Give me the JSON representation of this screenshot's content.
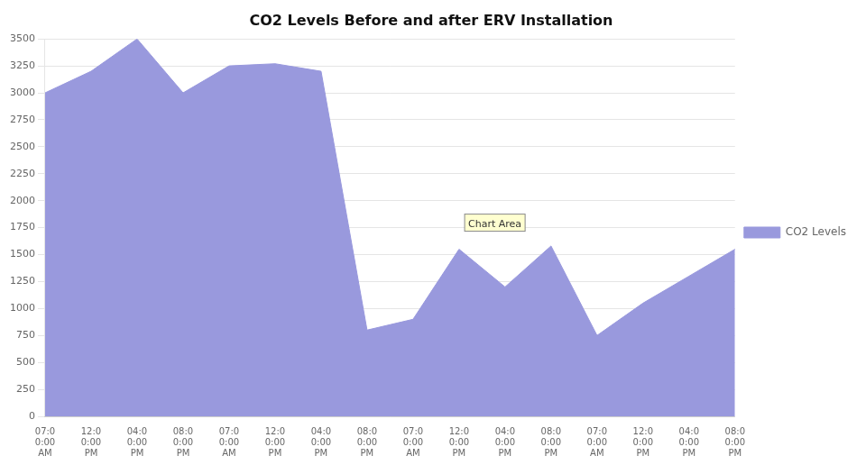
{
  "chart_data": {
    "type": "area",
    "title": "CO2 Levels Before and after ERV Installation",
    "categories": [
      "07:0\n0:00\nAM",
      "12:0\n0:00\nPM",
      "04:0\n0:00\nPM",
      "08:0\n0:00\nPM",
      "07:0\n0:00\nAM",
      "12:0\n0:00\nPM",
      "04:0\n0:00\nPM",
      "08:0\n0:00\nPM",
      "07:0\n0:00\nAM",
      "12:0\n0:00\nPM",
      "04:0\n0:00\nPM",
      "08:0\n0:00\nPM",
      "07:0\n0:00\nAM",
      "12:0\n0:00\nPM",
      "04:0\n0:00\nPM",
      "08:0\n0:00\nPM"
    ],
    "series": [
      {
        "name": "CO2 Levels",
        "color": "#9999dd",
        "values": [
          3000,
          3200,
          3500,
          3000,
          3250,
          3270,
          3200,
          800,
          900,
          1550,
          1200,
          1580,
          750,
          1050,
          1300,
          1550
        ]
      }
    ],
    "ylim": [
      0,
      3500
    ],
    "yticks": [
      0,
      250,
      500,
      750,
      1000,
      1250,
      1500,
      1750,
      2000,
      2250,
      2500,
      2750,
      3000,
      3250,
      3500
    ],
    "grid": true,
    "legend": "right",
    "annotations": [
      {
        "text": "Chart Area",
        "x": 9.2,
        "y": 1750
      }
    ]
  }
}
